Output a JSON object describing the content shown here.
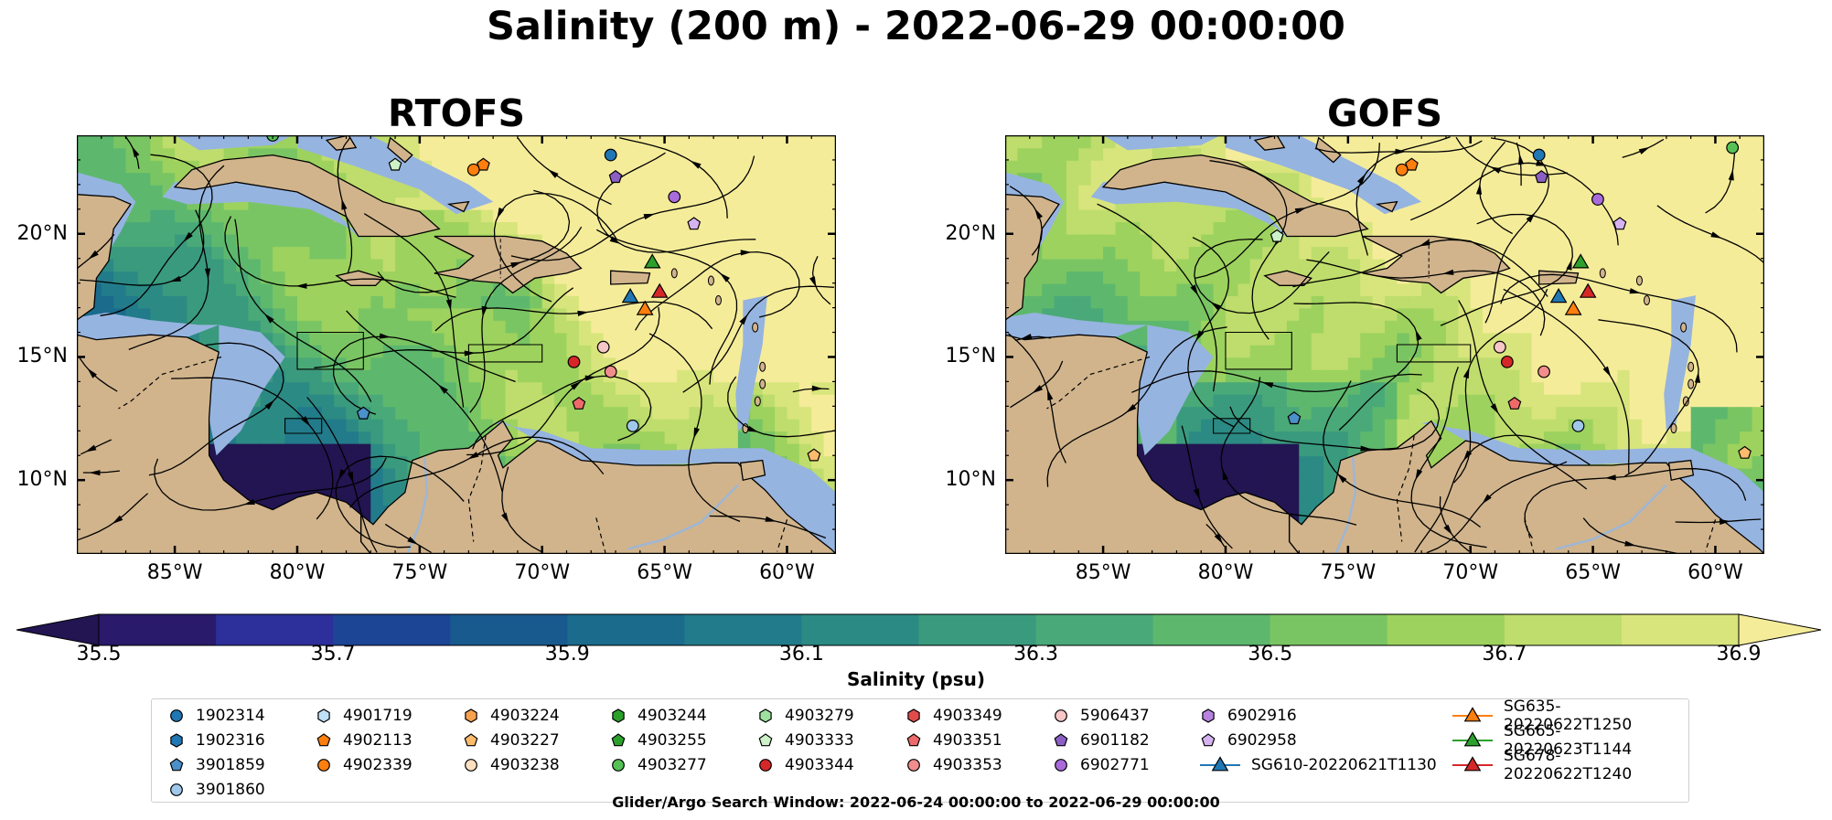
{
  "figure": {
    "title": "Salinity (200 m) - 2022-06-29 00:00:00",
    "footer": "Glider/Argo Search Window: 2022-06-24 00:00:00 to 2022-06-29 00:00:00"
  },
  "chart_data": {
    "type": "heatmap",
    "variable": "Salinity (200 m)",
    "panels": [
      {
        "title": "RTOFS"
      },
      {
        "title": "GOFS"
      }
    ],
    "xlim": [
      -89,
      -58
    ],
    "ylim": [
      7,
      24
    ],
    "x_ticks": [
      -85,
      -80,
      -75,
      -70,
      -65,
      -60
    ],
    "y_ticks": [
      10,
      15,
      20
    ],
    "x_tick_labels": [
      "85°W",
      "80°W",
      "75°W",
      "70°W",
      "65°W",
      "60°W"
    ],
    "y_tick_labels": [
      "10°N",
      "15°N",
      "20°N"
    ],
    "colorbar": {
      "label": "Salinity (psu)",
      "min": 35.5,
      "max": 36.9,
      "step": 0.1,
      "extend": "both",
      "tick_labels": [
        "35.5",
        "35.7",
        "35.9",
        "36.1",
        "36.3",
        "36.5",
        "36.7",
        "36.9"
      ],
      "colors": [
        "#2a1a6b",
        "#2d2f9a",
        "#1d4596",
        "#185a8e",
        "#1a6b8c",
        "#227b8a",
        "#2c8a84",
        "#3a9a7e",
        "#4aa978",
        "#5db86e",
        "#7ac563",
        "#9dd25e",
        "#bedd6c",
        "#d8e57c"
      ],
      "under_color": "#221552",
      "over_color": "#f5ec9a"
    },
    "land_color": "#d1b48c",
    "shelf_color": "#96b4e0",
    "legend": {
      "floats": [
        {
          "id": "1902314",
          "marker": "circle",
          "color": "#1f77b4",
          "lon": -67.2,
          "lat": 23.2,
          "gofs_lon": -67.2,
          "gofs_lat": 23.2
        },
        {
          "id": "1902316",
          "marker": "hexagon",
          "color": "#1f77b4"
        },
        {
          "id": "3901859",
          "marker": "pentagon",
          "color": "#4b90c9",
          "lon": -77.3,
          "lat": 12.7,
          "gofs_lon": -77.2,
          "gofs_lat": 12.5
        },
        {
          "id": "3901860",
          "marker": "circle",
          "color": "#9fc8ea",
          "lon": -66.3,
          "lat": 12.2,
          "gofs_lon": -65.6,
          "gofs_lat": 12.2
        },
        {
          "id": "4901719",
          "marker": "hexagon",
          "color": "#bfe0f5"
        },
        {
          "id": "4902113",
          "marker": "pentagon",
          "color": "#ff7f0e",
          "lon": -72.4,
          "lat": 22.8,
          "gofs_lon": -72.4,
          "gofs_lat": 22.8
        },
        {
          "id": "4902339",
          "marker": "circle",
          "color": "#ff7f0e",
          "lon": -72.8,
          "lat": 22.6,
          "gofs_lon": -72.8,
          "gofs_lat": 22.6
        },
        {
          "id": "4903224",
          "marker": "hexagon",
          "color": "#f8a14f"
        },
        {
          "id": "4903227",
          "marker": "pentagon",
          "color": "#fdbb6d",
          "lon": -58.9,
          "lat": 11.0,
          "gofs_lon": -58.8,
          "gofs_lat": 11.1
        },
        {
          "id": "4903238",
          "marker": "circle",
          "color": "#fde0bf"
        },
        {
          "id": "4903244",
          "marker": "hexagon",
          "color": "#2ca02c"
        },
        {
          "id": "4903255",
          "marker": "pentagon",
          "color": "#2ca02c"
        },
        {
          "id": "4903277",
          "marker": "circle",
          "color": "#56c256",
          "lon": -81.0,
          "lat": 24.0,
          "gofs_lon": -59.3,
          "gofs_lat": 23.5
        },
        {
          "id": "4903279",
          "marker": "hexagon",
          "color": "#9ee19e"
        },
        {
          "id": "4903333",
          "marker": "pentagon",
          "color": "#cdf2c8",
          "lon": -76.0,
          "lat": 22.8,
          "gofs_lon": -77.9,
          "gofs_lat": 19.9
        },
        {
          "id": "4903344",
          "marker": "circle",
          "color": "#d62728",
          "lon": -68.7,
          "lat": 14.8,
          "gofs_lon": -68.5,
          "gofs_lat": 14.8
        },
        {
          "id": "4903349",
          "marker": "hexagon",
          "color": "#e34b4b"
        },
        {
          "id": "4903351",
          "marker": "pentagon",
          "color": "#ee6a6a",
          "lon": -68.5,
          "lat": 13.1,
          "gofs_lon": -68.2,
          "gofs_lat": 13.1
        },
        {
          "id": "4903353",
          "marker": "circle",
          "color": "#f28d8d",
          "lon": -67.2,
          "lat": 14.4,
          "gofs_lon": -67.0,
          "gofs_lat": 14.4
        },
        {
          "id": "5906437",
          "marker": "circle",
          "color": "#f7c6c6",
          "lon": -67.5,
          "lat": 15.4,
          "gofs_lon": -68.8,
          "gofs_lat": 15.4
        },
        {
          "id": "6901182",
          "marker": "pentagon",
          "color": "#8c5fc4",
          "lon": -67.0,
          "lat": 22.3,
          "gofs_lon": -67.1,
          "gofs_lat": 22.3
        },
        {
          "id": "6902771",
          "marker": "circle",
          "color": "#a86bd9",
          "lon": -64.6,
          "lat": 21.5,
          "gofs_lon": -64.8,
          "gofs_lat": 21.4
        },
        {
          "id": "6902916",
          "marker": "hexagon",
          "color": "#b882e0"
        },
        {
          "id": "6902958",
          "marker": "pentagon",
          "color": "#d6b3f0",
          "lon": -63.8,
          "lat": 20.4,
          "gofs_lon": -63.9,
          "gofs_lat": 20.4
        }
      ],
      "gliders": [
        {
          "id": "SG610-20220621T1130",
          "color": "#1f77b4",
          "lon": -66.4,
          "lat": 17.4,
          "gofs_lon": -66.4,
          "gofs_lat": 17.4
        },
        {
          "id": "SG635-20220622T1250",
          "color": "#ff7f0e",
          "lon": -65.8,
          "lat": 16.9,
          "gofs_lon": -65.8,
          "gofs_lat": 16.9
        },
        {
          "id": "SG665-20220623T1144",
          "color": "#2ca02c",
          "lon": -65.5,
          "lat": 18.8,
          "gofs_lon": -65.5,
          "gofs_lat": 18.8
        },
        {
          "id": "SG678-20220622T1240",
          "color": "#d62728",
          "lon": -65.2,
          "lat": 17.6,
          "gofs_lon": -65.2,
          "gofs_lat": 17.6
        }
      ]
    }
  }
}
